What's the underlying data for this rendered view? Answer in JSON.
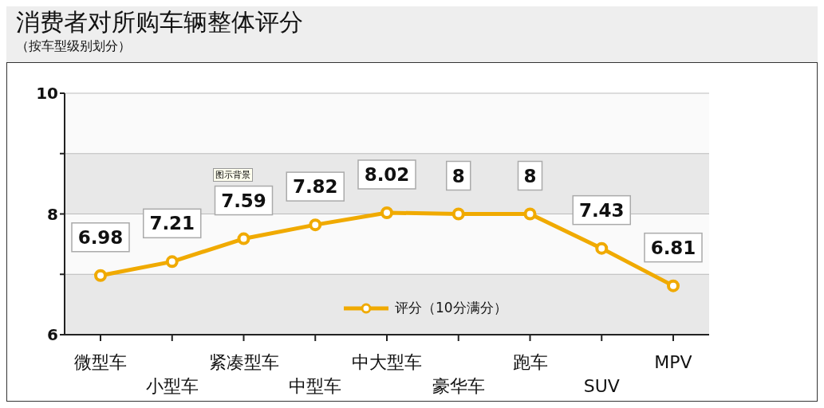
{
  "chart_data": {
    "type": "line",
    "title": "消费者对所购车辆整体评分",
    "subtitle": "（按车型级别划分）",
    "categories": [
      "微型车",
      "小型车",
      "紧凑型车",
      "中型车",
      "中大型车",
      "豪华车",
      "跑车",
      "SUV",
      "MPV"
    ],
    "series": [
      {
        "name": "评分（10分满分）",
        "color": "#f0aa00",
        "values": [
          6.98,
          7.21,
          7.59,
          7.82,
          8.02,
          8,
          8,
          7.43,
          6.81
        ]
      }
    ],
    "ylim": [
      6,
      10
    ],
    "yticks": [
      6,
      {
        "value": 7,
        "label": null
      },
      8,
      {
        "value": 9,
        "label": null
      },
      10
    ],
    "grid": "y",
    "legend": "bottom",
    "marker": "circle",
    "line_style": "solid",
    "data_labels": true,
    "annotations": [
      "图示背景"
    ]
  }
}
